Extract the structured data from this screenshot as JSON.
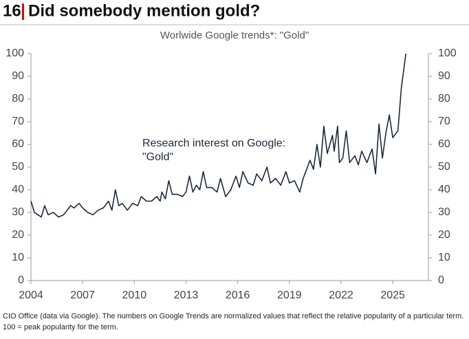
{
  "header": {
    "number": "16",
    "title": "Did somebody mention gold?"
  },
  "chart_data": {
    "type": "line",
    "title": "Worlwide Google trends*: \"Gold\"",
    "annotation": [
      "Research interest on Google:",
      "\"Gold\""
    ],
    "x": [
      2004.0,
      2004.2,
      2004.4,
      2004.6,
      2004.8,
      2005.0,
      2005.3,
      2005.6,
      2005.9,
      2006.1,
      2006.3,
      2006.5,
      2006.8,
      2007.0,
      2007.3,
      2007.6,
      2007.9,
      2008.2,
      2008.5,
      2008.7,
      2008.9,
      2009.1,
      2009.3,
      2009.6,
      2009.9,
      2010.2,
      2010.4,
      2010.7,
      2011.0,
      2011.3,
      2011.5,
      2011.6,
      2011.8,
      2012.0,
      2012.2,
      2012.5,
      2012.8,
      2013.0,
      2013.2,
      2013.4,
      2013.6,
      2013.8,
      2014.0,
      2014.2,
      2014.5,
      2014.8,
      2015.0,
      2015.3,
      2015.6,
      2015.9,
      2016.1,
      2016.3,
      2016.6,
      2016.9,
      2017.1,
      2017.4,
      2017.7,
      2017.9,
      2018.2,
      2018.5,
      2018.8,
      2019.0,
      2019.3,
      2019.6,
      2019.8,
      2020.0,
      2020.2,
      2020.4,
      2020.6,
      2020.8,
      2021.0,
      2021.2,
      2021.5,
      2021.6,
      2021.8,
      2021.9,
      2022.1,
      2022.3,
      2022.5,
      2022.8,
      2023.0,
      2023.2,
      2023.5,
      2023.8,
      2024.0,
      2024.2,
      2024.4,
      2024.6,
      2024.8,
      2025.0,
      2025.3,
      2025.5,
      2025.76
    ],
    "series": [
      {
        "color": "#1b2838",
        "values": [
          35,
          30,
          29,
          28,
          33,
          29,
          30,
          28,
          29,
          31,
          33,
          32,
          34,
          32,
          30,
          29,
          31,
          32,
          35,
          31,
          40,
          33,
          34,
          31,
          34,
          33,
          37,
          35,
          35,
          37,
          35,
          39,
          36,
          44,
          38,
          38,
          37,
          39,
          46,
          39,
          42,
          40,
          48,
          41,
          41,
          39,
          45,
          37,
          40,
          46,
          41,
          48,
          43,
          42,
          47,
          44,
          50,
          43,
          45,
          42,
          48,
          43,
          44,
          39,
          45,
          49,
          53,
          49,
          60,
          50,
          68,
          56,
          64,
          57,
          68,
          52,
          54,
          66,
          52,
          55,
          51,
          57,
          52,
          58,
          47,
          69,
          54,
          65,
          73,
          63,
          66,
          85,
          100
        ]
      }
    ],
    "xlim": [
      2004,
      2027.07
    ],
    "xticks": [
      2004,
      2007,
      2010,
      2013,
      2016,
      2019,
      2022,
      2025
    ],
    "ylim": [
      0,
      100
    ],
    "yticks": [
      0,
      10,
      20,
      30,
      40,
      50,
      60,
      70,
      80,
      90,
      100
    ],
    "y2lim": [
      0,
      100
    ],
    "y2ticks": [
      0,
      10,
      20,
      30,
      40,
      50,
      60,
      70,
      80,
      90,
      100
    ]
  },
  "footnote": [
    "CIO Office (data via Google). The numbers on Google Trends are normalized values that reflect the relative popularity of a particular term.",
    "100 = peak popularity for the term."
  ]
}
